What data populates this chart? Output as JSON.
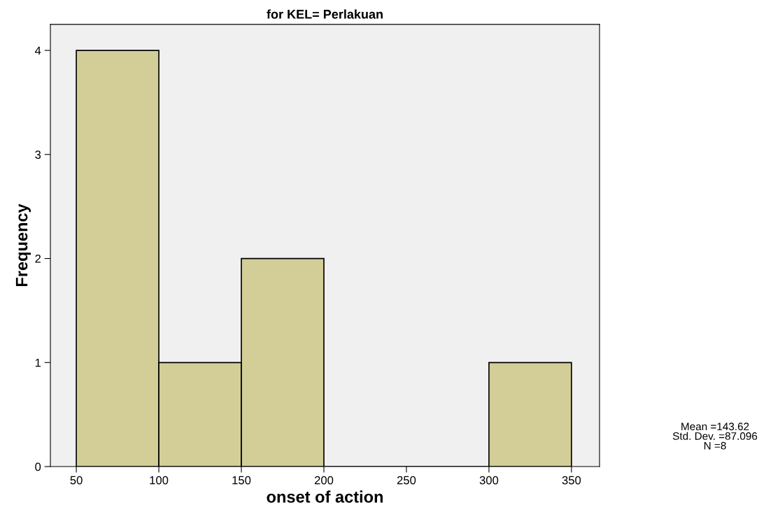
{
  "chart_data": {
    "type": "histogram",
    "title": "for KEL= Perlakuan",
    "xlabel": "onset of action",
    "ylabel": "Frequency",
    "bins": [
      50,
      100,
      150,
      200,
      250,
      300,
      350
    ],
    "values": [
      4,
      1,
      2,
      0,
      0,
      1
    ],
    "color": "#d3ce97",
    "xlim": [
      34.3,
      367
    ],
    "xticks": [
      50,
      100,
      150,
      200,
      250,
      300,
      350
    ],
    "ylim": [
      0,
      4.25
    ],
    "yticks": [
      0,
      1,
      2,
      3,
      4
    ],
    "grid": false,
    "annotations": [
      "Mean =143.62\nStd. Dev. =87.096\nN =8"
    ]
  }
}
